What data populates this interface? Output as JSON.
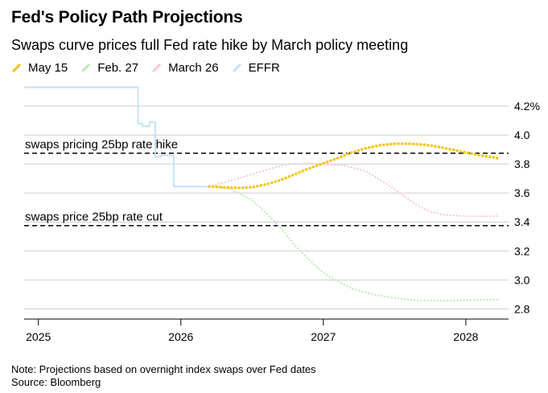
{
  "header": {
    "title": "Fed's Policy Path Projections",
    "subtitle": "Swaps curve prices full Fed rate hike by March policy meeting"
  },
  "footer": {
    "note": "Note: Projections based on overnight index swaps over Fed dates",
    "source": "Source: Bloomberg"
  },
  "chart_data": {
    "type": "line",
    "x_ticks": [
      "2025",
      "2026",
      "2027",
      "2028"
    ],
    "y_ticks": [
      "4.2%",
      "4.0",
      "3.8",
      "3.6",
      "3.4",
      "3.2",
      "3.0",
      "2.8"
    ],
    "y_tick_values": [
      4.2,
      4.0,
      3.8,
      3.6,
      3.4,
      3.2,
      3.0,
      2.8
    ],
    "ylim": [
      2.73,
      4.35
    ],
    "xlim": [
      2024.9,
      2028.3
    ],
    "y_axis_side": "right",
    "grid": "horizontal",
    "legend_placement": "top-left",
    "series": [
      {
        "name": "May 15",
        "color": "#f5c518",
        "style": "dotted-thick",
        "points": [
          [
            2026.2,
            3.645
          ],
          [
            2026.3,
            3.64
          ],
          [
            2026.4,
            3.635
          ],
          [
            2026.5,
            3.64
          ],
          [
            2026.6,
            3.66
          ],
          [
            2026.7,
            3.69
          ],
          [
            2026.8,
            3.73
          ],
          [
            2026.9,
            3.77
          ],
          [
            2027.0,
            3.805
          ],
          [
            2027.1,
            3.84
          ],
          [
            2027.2,
            3.88
          ],
          [
            2027.3,
            3.91
          ],
          [
            2027.4,
            3.93
          ],
          [
            2027.5,
            3.94
          ],
          [
            2027.6,
            3.94
          ],
          [
            2027.7,
            3.935
          ],
          [
            2027.8,
            3.92
          ],
          [
            2027.9,
            3.9
          ],
          [
            2028.0,
            3.88
          ],
          [
            2028.1,
            3.86
          ],
          [
            2028.2,
            3.845
          ],
          [
            2028.22,
            3.84
          ]
        ]
      },
      {
        "name": "Feb. 27",
        "color": "#bde8b4",
        "style": "dotted",
        "points": [
          [
            2026.2,
            3.645
          ],
          [
            2026.35,
            3.63
          ],
          [
            2026.5,
            3.55
          ],
          [
            2026.6,
            3.46
          ],
          [
            2026.7,
            3.36
          ],
          [
            2026.8,
            3.24
          ],
          [
            2026.9,
            3.14
          ],
          [
            2027.0,
            3.05
          ],
          [
            2027.1,
            2.99
          ],
          [
            2027.2,
            2.94
          ],
          [
            2027.35,
            2.9
          ],
          [
            2027.5,
            2.875
          ],
          [
            2027.65,
            2.86
          ],
          [
            2027.8,
            2.855
          ],
          [
            2028.0,
            2.86
          ],
          [
            2028.15,
            2.865
          ],
          [
            2028.22,
            2.865
          ]
        ]
      },
      {
        "name": "March 26",
        "color": "#f7c6cf",
        "style": "dotted",
        "points": [
          [
            2026.2,
            3.645
          ],
          [
            2026.4,
            3.7
          ],
          [
            2026.6,
            3.76
          ],
          [
            2026.75,
            3.8
          ],
          [
            2026.9,
            3.805
          ],
          [
            2027.0,
            3.8
          ],
          [
            2027.15,
            3.79
          ],
          [
            2027.3,
            3.75
          ],
          [
            2027.45,
            3.66
          ],
          [
            2027.55,
            3.59
          ],
          [
            2027.65,
            3.52
          ],
          [
            2027.75,
            3.47
          ],
          [
            2027.85,
            3.45
          ],
          [
            2028.0,
            3.44
          ],
          [
            2028.22,
            3.44
          ]
        ]
      },
      {
        "name": "EFFR",
        "color": "#c5e2f7",
        "style": "solid",
        "points": [
          [
            2024.9,
            4.33
          ],
          [
            2025.7,
            4.33
          ],
          [
            2025.7,
            4.08
          ],
          [
            2025.73,
            4.08
          ],
          [
            2025.73,
            4.06
          ],
          [
            2025.78,
            4.06
          ],
          [
            2025.78,
            4.09
          ],
          [
            2025.82,
            4.09
          ],
          [
            2025.82,
            3.85
          ],
          [
            2025.86,
            3.85
          ],
          [
            2025.86,
            3.86
          ],
          [
            2025.95,
            3.86
          ],
          [
            2025.95,
            3.645
          ],
          [
            2026.2,
            3.645
          ]
        ]
      }
    ],
    "reference_lines": [
      {
        "label": "swaps pricing 25bp rate hike",
        "y": 3.875
      },
      {
        "label": "swaps price 25bp rate cut",
        "y": 3.375
      }
    ]
  }
}
